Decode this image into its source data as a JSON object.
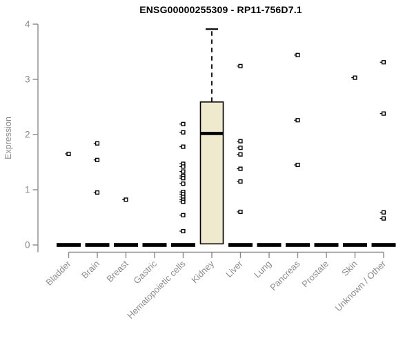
{
  "title": "ENSG00000255309 - RP11-756D7.1",
  "chart_data": {
    "type": "boxplot",
    "title": "ENSG00000255309 - RP11-756D7.1",
    "ylabel": "Expression",
    "xlabel": "",
    "ylim": [
      0,
      4
    ],
    "yticks": [
      0,
      1,
      2,
      3,
      4
    ],
    "grid": false,
    "legend": "none",
    "categories": [
      "Bladder",
      "Brain",
      "Breast",
      "Gastric",
      "Hematopoietic cells",
      "Kidney",
      "Liver",
      "Lung",
      "Pancreas",
      "Prostate",
      "Skin",
      "Unknown / Other"
    ],
    "series": [
      {
        "category": "Bladder",
        "median": 0,
        "points": [
          1.65
        ]
      },
      {
        "category": "Brain",
        "median": 0,
        "points": [
          1.84,
          1.54,
          0.95
        ]
      },
      {
        "category": "Breast",
        "median": 0,
        "points": [
          0.82
        ]
      },
      {
        "category": "Gastric",
        "median": 0,
        "points": []
      },
      {
        "category": "Hematopoietic cells",
        "median": 0,
        "points": [
          2.19,
          2.04,
          1.78,
          1.47,
          1.42,
          1.33,
          1.25,
          1.21,
          1.11,
          0.96,
          0.92,
          0.87,
          0.82,
          0.78,
          0.54,
          0.25
        ]
      },
      {
        "category": "Kidney",
        "box": {
          "whisker_low": 0,
          "q1": 0.02,
          "median": 2.02,
          "q3": 2.59,
          "whisker_high": 3.91
        },
        "points": []
      },
      {
        "category": "Liver",
        "median": 0,
        "points": [
          3.24,
          1.88,
          1.76,
          1.64,
          1.38,
          1.15,
          0.6
        ]
      },
      {
        "category": "Lung",
        "median": 0,
        "points": []
      },
      {
        "category": "Pancreas",
        "median": 0,
        "points": [
          3.44,
          2.26,
          1.45
        ]
      },
      {
        "category": "Prostate",
        "median": 0,
        "points": []
      },
      {
        "category": "Skin",
        "median": 0,
        "points": [
          3.03
        ]
      },
      {
        "category": "Unknown / Other",
        "median": 0,
        "points": [
          3.31,
          2.38,
          0.59,
          0.48
        ]
      }
    ]
  },
  "colors": {
    "background": "#FFFFFF",
    "title_text": "#000000",
    "axis": "#8C8C8C",
    "axis_text": "#8C8C8C",
    "box_fill": "#EFE9CE",
    "box_border": "#000000",
    "median": "#000000",
    "zero_bar": "#000000",
    "point_stroke": "#000000",
    "point_fill": "#FFFFFF"
  }
}
